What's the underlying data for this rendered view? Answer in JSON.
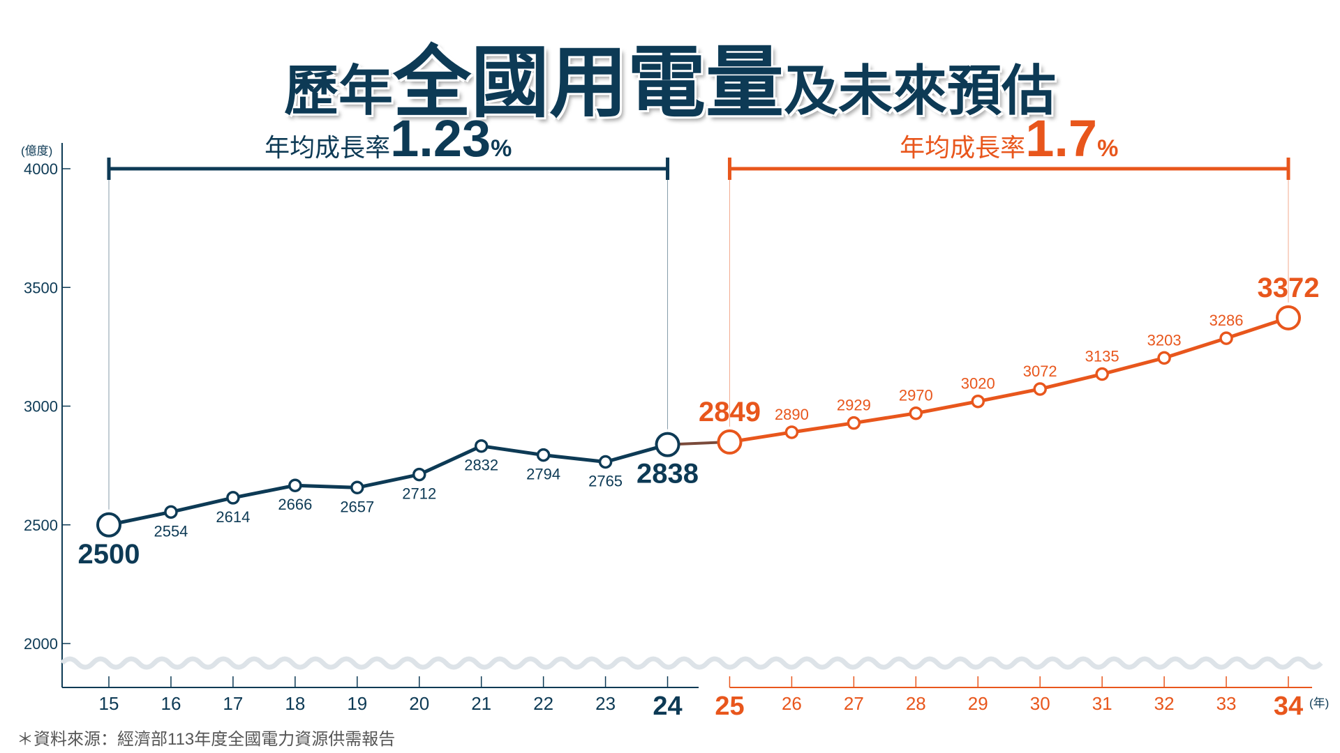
{
  "title": {
    "part1": "歷年",
    "part2": "全國用電量",
    "part3": "及未來預估"
  },
  "source": "＊資料來源：經濟部113年度全國電力資源供需報告",
  "colors": {
    "historical": "#0d3a55",
    "forecast": "#e8561c",
    "wave": "#dde3e8"
  },
  "chart_data": {
    "type": "line",
    "ylabel": "(億度)",
    "xlabel": "(年)",
    "ylim": [
      2000,
      4000
    ],
    "yticks": [
      2000,
      2500,
      3000,
      3500,
      4000
    ],
    "ytick_labels": [
      "2000",
      "2500",
      "3000",
      "3500",
      "4000"
    ],
    "y_axis_break": true,
    "grid": false,
    "series": [
      {
        "x": [
          "15",
          "16",
          "17",
          "18",
          "19",
          "20",
          "21",
          "22",
          "23",
          "24"
        ],
        "values": [
          2500,
          2554,
          2614,
          2666,
          2657,
          2712,
          2832,
          2794,
          2765,
          2838
        ]
      },
      {
        "x": [
          "25",
          "26",
          "27",
          "28",
          "29",
          "30",
          "31",
          "32",
          "33",
          "34"
        ],
        "values": [
          2849,
          2890,
          2929,
          2970,
          3020,
          3072,
          3135,
          3203,
          3286,
          3372
        ]
      }
    ],
    "annotations": [
      {
        "label": "年均成長率",
        "value": "1.23",
        "unit": "%",
        "from": "15",
        "to": "24"
      },
      {
        "label": "年均成長率",
        "value": "1.7",
        "unit": "%",
        "from": "25",
        "to": "34"
      }
    ]
  }
}
